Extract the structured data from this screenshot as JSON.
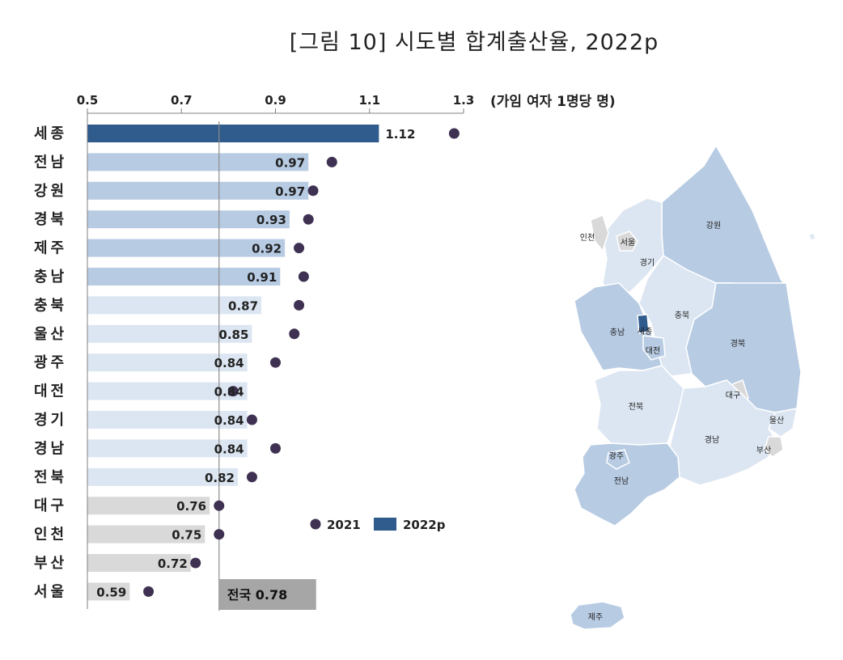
{
  "title": "[그림 10] 시도별 합계출산율, 2022p",
  "chart_data": {
    "type": "bar",
    "title": "[그림 10] 시도별 합계출산율, 2022p",
    "unit_label": "(가임 여자 1명당 명)",
    "xlim": [
      0.5,
      1.3
    ],
    "xticks": [
      "0.5",
      "0.7",
      "0.9",
      "1.1",
      "1.3"
    ],
    "categories": [
      "세종",
      "전남",
      "강원",
      "경북",
      "제주",
      "충남",
      "충북",
      "울산",
      "광주",
      "대전",
      "경기",
      "경남",
      "전북",
      "대구",
      "인천",
      "부산",
      "서울"
    ],
    "series": [
      {
        "name": "2021",
        "values": [
          1.28,
          1.02,
          0.98,
          0.97,
          0.95,
          0.96,
          0.95,
          0.94,
          0.9,
          0.81,
          0.85,
          0.9,
          0.85,
          0.78,
          0.78,
          0.73,
          0.63
        ]
      },
      {
        "name": "2022p",
        "values": [
          1.12,
          0.97,
          0.97,
          0.93,
          0.92,
          0.91,
          0.87,
          0.85,
          0.84,
          0.84,
          0.84,
          0.84,
          0.82,
          0.76,
          0.75,
          0.72,
          0.59
        ]
      }
    ],
    "value_labels": [
      "1.12",
      "0.97",
      "0.97",
      "0.93",
      "0.92",
      "0.91",
      "0.87",
      "0.85",
      "0.84",
      "0.84",
      "0.84",
      "0.84",
      "0.82",
      "0.76",
      "0.75",
      "0.72",
      "0.59"
    ],
    "bar_tiers": [
      "dark",
      "mid",
      "mid",
      "mid",
      "mid",
      "mid",
      "light",
      "light",
      "light",
      "light",
      "light",
      "light",
      "light",
      "gray",
      "gray",
      "gray",
      "gray"
    ],
    "national": {
      "label": "전국 0.78",
      "value": 0.78
    },
    "legend": {
      "placement": "bottom-right",
      "items": [
        "2021",
        "2022p"
      ]
    },
    "colors": {
      "dark": "#2f5b8d",
      "mid": "#b7cbe3",
      "light": "#dce6f2",
      "gray": "#d9d9d9",
      "dot": "#3f3152",
      "national_box": "#a6a6a6",
      "axis": "#808080"
    }
  },
  "map": {
    "regions": [
      "인천",
      "서울",
      "경기",
      "강원",
      "충남",
      "세종",
      "충북",
      "대전",
      "경북",
      "대구",
      "전북",
      "울산",
      "경남",
      "부산",
      "광주",
      "전남",
      "제주"
    ]
  }
}
